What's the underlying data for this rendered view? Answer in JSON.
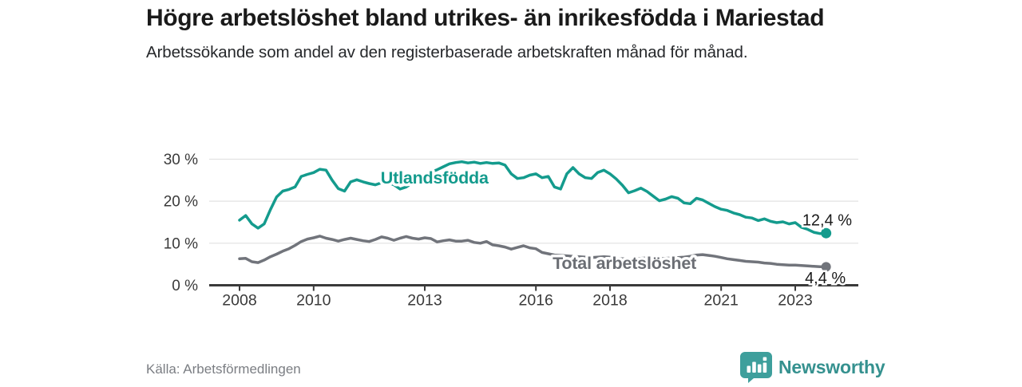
{
  "header": {
    "title": "Högre arbetslöshet bland utrikes- än inrikesfödda i Mariestad",
    "subtitle": "Arbetssökande som andel av den registerbaserade arbetskraften månad för månad."
  },
  "chart_data": {
    "type": "line",
    "x_start": 2008,
    "x_step_years": 0.166667,
    "x_end": 2023.833,
    "ylim": [
      0,
      32
    ],
    "grid": "horizontal",
    "yticks": [
      {
        "value": 30,
        "label": "30 %"
      },
      {
        "value": 20,
        "label": "20 %"
      },
      {
        "value": 10,
        "label": "10 %"
      },
      {
        "value": 0,
        "label": "0 %"
      }
    ],
    "xticks": [
      {
        "value": 2008,
        "label": "2008"
      },
      {
        "value": 2010,
        "label": "2010"
      },
      {
        "value": 2013,
        "label": "2013"
      },
      {
        "value": 2016,
        "label": "2016"
      },
      {
        "value": 2018,
        "label": "2018"
      },
      {
        "value": 2021,
        "label": "2021"
      },
      {
        "value": 2023,
        "label": "2023"
      }
    ],
    "series": [
      {
        "name": "Utlandsfödda",
        "color": "#149b8d",
        "end_value_label": "12,4 %",
        "values": [
          15.5,
          16.6,
          14.6,
          13.6,
          14.6,
          18.0,
          21.0,
          22.4,
          22.8,
          23.4,
          25.9,
          26.4,
          26.8,
          27.6,
          27.4,
          25.0,
          23.0,
          22.4,
          24.6,
          25.1,
          24.6,
          24.2,
          23.9,
          24.4,
          24.5,
          23.9,
          22.9,
          23.4,
          24.4,
          25.7,
          26.3,
          26.9,
          27.5,
          28.2,
          28.9,
          29.2,
          29.4,
          29.1,
          29.3,
          29.0,
          29.2,
          29.0,
          29.1,
          28.6,
          26.5,
          25.4,
          25.6,
          26.2,
          26.5,
          25.6,
          25.9,
          23.4,
          22.9,
          26.5,
          28.0,
          26.5,
          25.6,
          25.4,
          26.8,
          27.4,
          26.5,
          25.3,
          23.8,
          22.0,
          22.5,
          23.1,
          22.3,
          21.2,
          20.1,
          20.5,
          21.1,
          20.7,
          19.6,
          19.4,
          20.7,
          20.3,
          19.5,
          18.7,
          18.1,
          17.8,
          17.2,
          16.8,
          16.2,
          16.0,
          15.4,
          15.8,
          15.2,
          14.9,
          15.1,
          14.6,
          14.9,
          13.8,
          13.3,
          12.6,
          12.3,
          12.4
        ]
      },
      {
        "name": "Total arbetslöshet",
        "color": "#71747b",
        "end_value_label": "4,4 %",
        "values": [
          6.3,
          6.4,
          5.6,
          5.4,
          6.0,
          6.8,
          7.4,
          8.1,
          8.7,
          9.5,
          10.4,
          11.0,
          11.3,
          11.7,
          11.2,
          10.9,
          10.5,
          10.9,
          11.2,
          10.9,
          10.6,
          10.4,
          10.9,
          11.5,
          11.2,
          10.7,
          11.2,
          11.6,
          11.2,
          11.0,
          11.3,
          11.1,
          10.3,
          10.6,
          10.8,
          10.5,
          10.5,
          10.7,
          10.2,
          10.0,
          10.4,
          9.6,
          9.4,
          9.1,
          8.6,
          9.0,
          9.4,
          8.9,
          8.7,
          7.8,
          7.5,
          7.2,
          7.1,
          7.0,
          6.9,
          6.8,
          6.7,
          6.6,
          6.7,
          6.8,
          6.7,
          6.5,
          6.3,
          6.2,
          6.3,
          6.4,
          6.5,
          6.4,
          6.3,
          6.4,
          6.5,
          6.6,
          6.7,
          6.9,
          7.2,
          7.3,
          7.1,
          6.9,
          6.6,
          6.3,
          6.1,
          5.9,
          5.7,
          5.6,
          5.5,
          5.3,
          5.2,
          5.0,
          4.9,
          4.8,
          4.8,
          4.7,
          4.6,
          4.5,
          4.4,
          4.4
        ]
      }
    ],
    "series_labels": [
      {
        "text": "Utlandsfödda",
        "x": 2011.81,
        "v": 24.2,
        "color": "#149b8d"
      },
      {
        "text": "Total arbetslöshet",
        "x": 2016.45,
        "v": 3.9,
        "color": "#6b6e74"
      }
    ],
    "value_labels": [
      {
        "text": "12,4 %",
        "x": 2023.19,
        "v": 14.2
      },
      {
        "text": "4,4 %",
        "x": 2023.26,
        "v": 0.5
      }
    ],
    "axis_color": "#3a3a3a",
    "grid_color": "#e2e2e2",
    "tick_label_color": "#3a3a3a"
  },
  "footer": {
    "source": "Källa: Arbetsförmedlingen",
    "brand": "Newsworthy",
    "brand_color": "#35918f",
    "logo_color": "#3e9f9c"
  }
}
